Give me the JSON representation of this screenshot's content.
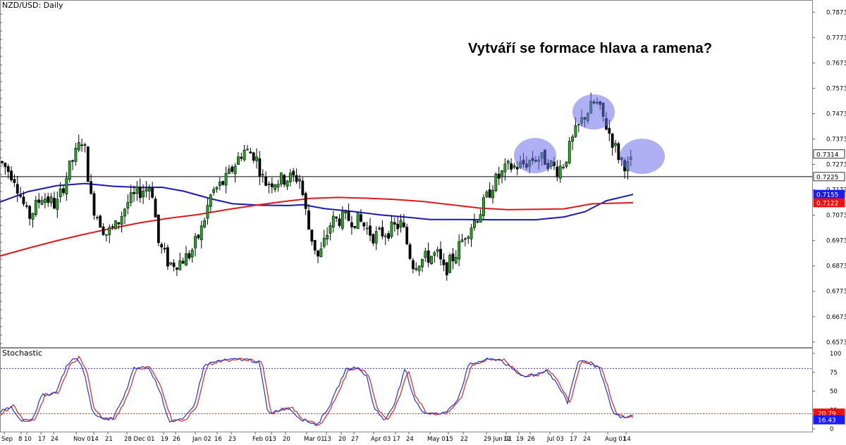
{
  "chart_data": {
    "type": "candlestick",
    "symbol_label": "NZD/USD: Daily",
    "title": "Vytváří se formace hlava a ramena?",
    "price_axis_ticks": [
      "0.7873",
      "0.7773",
      "0.7673",
      "0.7573",
      "0.7473",
      "0.7373",
      "0.7273",
      "0.7173",
      "0.7073",
      "0.6973",
      "0.6873",
      "0.6773",
      "0.6673",
      "0.6573"
    ],
    "price_ylim": [
      0.6553,
      0.7921
    ],
    "x_tick_labels": [
      "Sep",
      "8",
      "10",
      "17",
      "24",
      "Nov 01",
      "14",
      "21",
      "28 Dec 01",
      "19",
      "26",
      "Jan 02",
      "16",
      "23",
      "Feb 01",
      "13",
      "20",
      "Mar 01",
      "13",
      "20",
      "27",
      "Apr 03",
      "17",
      "24",
      "May 01",
      "15",
      "22",
      "29 Jun 01",
      "12",
      "19",
      "26",
      "Jul 03",
      "17",
      "24",
      "Aug 01",
      "14"
    ],
    "horizontal_line": 0.7225,
    "price_badges": [
      {
        "value": "0.7314",
        "color": "#ffffff"
      },
      {
        "value": "0.7225",
        "color": "#ffffff"
      },
      {
        "value": "0.7155",
        "color": "#1a1aff"
      },
      {
        "value": "0.7122",
        "color": "#ee1111"
      }
    ],
    "moving_averages": [
      {
        "color": "#1a1ab0",
        "points": [
          [
            0,
            0.7125
          ],
          [
            40,
            0.7166
          ],
          [
            80,
            0.7189
          ],
          [
            120,
            0.7198
          ],
          [
            160,
            0.7187
          ],
          [
            200,
            0.7182
          ],
          [
            230,
            0.7183
          ],
          [
            260,
            0.7168
          ],
          [
            300,
            0.7137
          ],
          [
            330,
            0.7118
          ],
          [
            370,
            0.7112
          ],
          [
            410,
            0.7111
          ],
          [
            430,
            0.7114
          ],
          [
            460,
            0.7099
          ],
          [
            500,
            0.7088
          ],
          [
            540,
            0.7074
          ],
          [
            580,
            0.7064
          ],
          [
            610,
            0.7056
          ],
          [
            650,
            0.7056
          ],
          [
            700,
            0.7055
          ],
          [
            760,
            0.7055
          ],
          [
            800,
            0.7066
          ],
          [
            830,
            0.7087
          ],
          [
            860,
            0.713
          ],
          [
            898,
            0.7155
          ]
        ]
      },
      {
        "color": "#dd1a1a",
        "points": [
          [
            0,
            0.6912
          ],
          [
            40,
            0.6943
          ],
          [
            80,
            0.6972
          ],
          [
            120,
            0.6998
          ],
          [
            160,
            0.7022
          ],
          [
            200,
            0.7044
          ],
          [
            240,
            0.7061
          ],
          [
            280,
            0.7075
          ],
          [
            320,
            0.7094
          ],
          [
            360,
            0.7111
          ],
          [
            400,
            0.7126
          ],
          [
            440,
            0.7139
          ],
          [
            480,
            0.7143
          ],
          [
            520,
            0.714
          ],
          [
            560,
            0.7135
          ],
          [
            600,
            0.7127
          ],
          [
            640,
            0.7114
          ],
          [
            680,
            0.7101
          ],
          [
            720,
            0.7095
          ],
          [
            760,
            0.7096
          ],
          [
            800,
            0.7098
          ],
          [
            840,
            0.7118
          ],
          [
            898,
            0.7122
          ]
        ]
      }
    ],
    "highlight_regions": [
      {
        "cx": 759,
        "cy": 221,
        "rx": 30,
        "ry": 25
      },
      {
        "cx": 842,
        "cy": 159,
        "rx": 30,
        "ry": 25
      },
      {
        "cx": 911,
        "cy": 222,
        "rx": 32,
        "ry": 25
      }
    ],
    "oscillator": {
      "label": "Stochastic",
      "ticks": [
        "100",
        "75",
        "50",
        "25",
        "0"
      ],
      "ylim": [
        0,
        100
      ],
      "levels": [
        80,
        20
      ],
      "badges": [
        {
          "value": "20.79",
          "color": "#ee1111"
        },
        {
          "value": "16.43",
          "color": "#1a1aff"
        }
      ]
    }
  }
}
